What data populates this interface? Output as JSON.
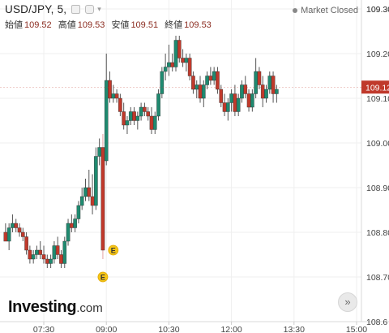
{
  "header": {
    "symbol": "USD/JPY, 5,",
    "market_status": "Market Closed",
    "ohlc": [
      {
        "key": "始値",
        "value": "109.52"
      },
      {
        "key": "高値",
        "value": "109.53"
      },
      {
        "key": "安値",
        "value": "109.51"
      },
      {
        "key": "終値",
        "value": "109.53"
      }
    ]
  },
  "logo": {
    "main": "Investing",
    "suffix": ".com"
  },
  "nav": {
    "forward_label": "»"
  },
  "colors": {
    "up": "#1f8a70",
    "down": "#c0392b",
    "wick": "#555555",
    "price_tag": "#c0392b"
  },
  "chart_data": {
    "type": "candlestick",
    "y_ticks": [
      "109.30",
      "109.20",
      "109.10",
      "109.00",
      "108.90",
      "108.80",
      "108.70"
    ],
    "y_tick_values": [
      109.3,
      109.2,
      109.1,
      109.0,
      108.9,
      108.8,
      108.7
    ],
    "y_axis_partial_labels": [
      {
        "label": "109.30",
        "value": 109.3
      },
      {
        "label": "108.6",
        "value": 108.6
      }
    ],
    "x_ticks": [
      "07:30",
      "09:00",
      "10:30",
      "12:00",
      "13:30",
      "15:00"
    ],
    "x_tick_minutes": [
      450,
      540,
      630,
      720,
      810,
      900
    ],
    "ylim": [
      108.6,
      109.32
    ],
    "xlim": [
      387,
      907
    ],
    "current_price": "109.12",
    "current_price_value": 109.125,
    "grid": true,
    "events": [
      {
        "label": "E",
        "time": "08:55"
      },
      {
        "label": "E",
        "time": "09:10"
      }
    ],
    "candles": [
      [
        0,
        108.8,
        108.82,
        108.78,
        108.78
      ],
      [
        1,
        108.78,
        108.82,
        108.76,
        108.81
      ],
      [
        2,
        108.81,
        108.84,
        108.8,
        108.82
      ],
      [
        3,
        108.82,
        108.83,
        108.8,
        108.81
      ],
      [
        4,
        108.81,
        108.82,
        108.79,
        108.8
      ],
      [
        5,
        108.8,
        108.81,
        108.78,
        108.79
      ],
      [
        6,
        108.79,
        108.8,
        108.75,
        108.76
      ],
      [
        7,
        108.76,
        108.77,
        108.73,
        108.74
      ],
      [
        8,
        108.74,
        108.76,
        108.73,
        108.75
      ],
      [
        9,
        108.75,
        108.77,
        108.74,
        108.76
      ],
      [
        10,
        108.76,
        108.78,
        108.74,
        108.75
      ],
      [
        11,
        108.75,
        108.77,
        108.73,
        108.74
      ],
      [
        12,
        108.74,
        108.75,
        108.72,
        108.73
      ],
      [
        13,
        108.73,
        108.75,
        108.72,
        108.74
      ],
      [
        14,
        108.74,
        108.78,
        108.73,
        108.77
      ],
      [
        15,
        108.77,
        108.79,
        108.74,
        108.75
      ],
      [
        16,
        108.75,
        108.76,
        108.72,
        108.73
      ],
      [
        17,
        108.73,
        108.79,
        108.72,
        108.78
      ],
      [
        18,
        108.78,
        108.83,
        108.77,
        108.82
      ],
      [
        19,
        108.82,
        108.84,
        108.8,
        108.81
      ],
      [
        20,
        108.81,
        108.84,
        108.8,
        108.83
      ],
      [
        21,
        108.83,
        108.87,
        108.82,
        108.86
      ],
      [
        22,
        108.86,
        108.9,
        108.85,
        108.88
      ],
      [
        23,
        108.88,
        108.92,
        108.87,
        108.9
      ],
      [
        24,
        108.9,
        108.94,
        108.87,
        108.88
      ],
      [
        25,
        108.88,
        108.93,
        108.84,
        108.86
      ],
      [
        26,
        108.86,
        108.99,
        108.85,
        108.97
      ],
      [
        27,
        108.97,
        109.01,
        108.95,
        108.99
      ],
      [
        28,
        108.99,
        109.02,
        108.74,
        108.76
      ],
      [
        29,
        108.96,
        109.2,
        108.95,
        109.14
      ],
      [
        30,
        109.14,
        109.16,
        109.09,
        109.1
      ],
      [
        31,
        109.1,
        109.13,
        109.09,
        109.11
      ],
      [
        32,
        109.11,
        109.12,
        109.09,
        109.1
      ],
      [
        33,
        109.1,
        109.11,
        109.06,
        109.07
      ],
      [
        34,
        109.07,
        109.09,
        109.03,
        109.04
      ],
      [
        35,
        109.04,
        109.06,
        109.02,
        109.05
      ],
      [
        36,
        109.05,
        109.08,
        109.04,
        109.07
      ],
      [
        37,
        109.07,
        109.08,
        109.04,
        109.05
      ],
      [
        38,
        109.05,
        109.07,
        109.03,
        109.06
      ],
      [
        39,
        109.06,
        109.09,
        109.05,
        109.08
      ],
      [
        40,
        109.08,
        109.09,
        109.06,
        109.07
      ],
      [
        41,
        109.07,
        109.08,
        109.05,
        109.06
      ],
      [
        42,
        109.06,
        109.08,
        109.02,
        109.03
      ],
      [
        43,
        109.03,
        109.07,
        109.02,
        109.06
      ],
      [
        44,
        109.06,
        109.12,
        109.05,
        109.11
      ],
      [
        45,
        109.11,
        109.17,
        109.1,
        109.16
      ],
      [
        46,
        109.16,
        109.2,
        109.14,
        109.17
      ],
      [
        47,
        109.17,
        109.22,
        109.15,
        109.18
      ],
      [
        48,
        109.18,
        109.2,
        109.16,
        109.17
      ],
      [
        49,
        109.17,
        109.24,
        109.16,
        109.23
      ],
      [
        50,
        109.23,
        109.24,
        109.18,
        109.19
      ],
      [
        51,
        109.19,
        109.21,
        109.17,
        109.18
      ],
      [
        52,
        109.18,
        109.2,
        109.16,
        109.19
      ],
      [
        53,
        109.19,
        109.2,
        109.14,
        109.15
      ],
      [
        54,
        109.15,
        109.16,
        109.11,
        109.12
      ],
      [
        55,
        109.12,
        109.14,
        109.1,
        109.13
      ],
      [
        56,
        109.13,
        109.15,
        109.09,
        109.1
      ],
      [
        57,
        109.1,
        109.14,
        109.08,
        109.13
      ],
      [
        58,
        109.13,
        109.16,
        109.12,
        109.15
      ],
      [
        59,
        109.15,
        109.17,
        109.13,
        109.14
      ],
      [
        60,
        109.14,
        109.17,
        109.13,
        109.16
      ],
      [
        61,
        109.16,
        109.17,
        109.11,
        109.12
      ],
      [
        62,
        109.12,
        109.13,
        109.08,
        109.09
      ],
      [
        63,
        109.09,
        109.11,
        109.06,
        109.07
      ],
      [
        64,
        109.07,
        109.1,
        109.05,
        109.09
      ],
      [
        65,
        109.09,
        109.12,
        109.07,
        109.11
      ],
      [
        66,
        109.11,
        109.13,
        109.06,
        109.07
      ],
      [
        67,
        109.07,
        109.11,
        109.06,
        109.1
      ],
      [
        68,
        109.1,
        109.14,
        109.09,
        109.13
      ],
      [
        69,
        109.13,
        109.15,
        109.1,
        109.11
      ],
      [
        70,
        109.11,
        109.12,
        109.07,
        109.08
      ],
      [
        71,
        109.08,
        109.12,
        109.07,
        109.11
      ],
      [
        72,
        109.11,
        109.19,
        109.1,
        109.16
      ],
      [
        73,
        109.16,
        109.17,
        109.12,
        109.13
      ],
      [
        74,
        109.13,
        109.15,
        109.08,
        109.1
      ],
      [
        75,
        109.1,
        109.13,
        109.09,
        109.12
      ],
      [
        76,
        109.12,
        109.16,
        109.11,
        109.15
      ],
      [
        77,
        109.15,
        109.16,
        109.09,
        109.11
      ],
      [
        78,
        109.11,
        109.13,
        109.09,
        109.12
      ]
    ]
  }
}
